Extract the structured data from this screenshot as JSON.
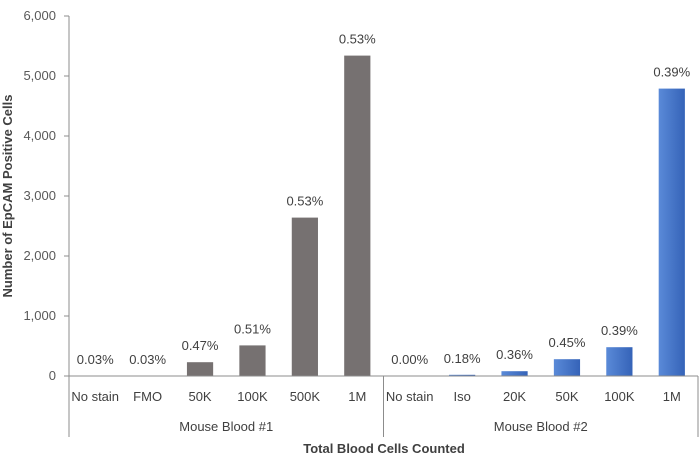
{
  "chart_data": {
    "type": "bar",
    "xlabel": "Total Blood Cells Counted",
    "ylabel": "Number of EpCAM Positive Cells",
    "ylim": [
      0,
      6000
    ],
    "yticks": [
      0,
      1000,
      2000,
      3000,
      4000,
      5000,
      6000
    ],
    "ytick_labels": [
      "0",
      "1,000",
      "2,000",
      "3,000",
      "4,000",
      "5,000",
      "6,000"
    ],
    "grid": false,
    "legend": "none",
    "groups": [
      {
        "name": "Mouse Blood #1",
        "color": "#767171",
        "categories": [
          "No stain",
          "FMO",
          "50K",
          "100K",
          "500K",
          "1M"
        ],
        "values": [
          0,
          0,
          230,
          510,
          2640,
          5340
        ],
        "labels": [
          "0.03%",
          "0.03%",
          "0.47%",
          "0.51%",
          "0.53%",
          "0.53%"
        ]
      },
      {
        "name": "Mouse Blood #2",
        "color": "#4472C4",
        "categories": [
          "No stain",
          "Iso",
          "20K",
          "50K",
          "100K",
          "1M"
        ],
        "values": [
          0,
          20,
          80,
          280,
          480,
          4790
        ],
        "labels": [
          "0.00%",
          "0.18%",
          "0.36%",
          "0.45%",
          "0.39%",
          "0.39%"
        ]
      }
    ]
  }
}
